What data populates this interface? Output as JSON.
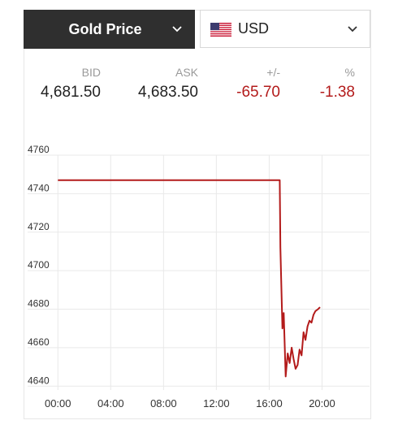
{
  "header": {
    "metal_label": "Gold Price",
    "currency_label": "USD",
    "icons": {
      "metal_dropdown": "chevron-down-icon",
      "currency_flag": "us-flag-icon",
      "currency_dropdown": "chevron-down-icon"
    }
  },
  "quote": {
    "bid_label": "BID",
    "ask_label": "ASK",
    "change_label": "+/-",
    "pct_label": "%",
    "bid": "4,681.50",
    "ask": "4,683.50",
    "change": "-65.70",
    "pct": "-1.38"
  },
  "colors": {
    "header_bg": "#2f2f2f",
    "line": "#b31b1b",
    "negative": "#b31b1b",
    "label_gray": "#9a9a9a"
  },
  "chart_data": {
    "type": "line",
    "title": "",
    "xlabel": "",
    "ylabel": "",
    "x_ticks": [
      "00:00",
      "04:00",
      "08:00",
      "12:00",
      "16:00",
      "20:00"
    ],
    "y_ticks": [
      4640,
      4660,
      4680,
      4700,
      4720,
      4740,
      4760
    ],
    "xlim": [
      -0.2,
      23.6
    ],
    "ylim": [
      4638,
      4760
    ],
    "grid": true,
    "series": [
      {
        "x": [
          0.0,
          16.8,
          16.85,
          17.0,
          17.1,
          17.25,
          17.4,
          17.55,
          17.7,
          17.85,
          18.0,
          18.15,
          18.3,
          18.45,
          18.6,
          18.75,
          18.9,
          19.05,
          19.2,
          19.35,
          19.5,
          19.7,
          19.85
        ],
        "y": [
          4747,
          4747,
          4712,
          4670,
          4678,
          4645,
          4657,
          4652,
          4660,
          4654,
          4649,
          4651,
          4659,
          4656,
          4668,
          4664,
          4671,
          4674,
          4673,
          4677,
          4679,
          4680,
          4681
        ]
      }
    ]
  }
}
